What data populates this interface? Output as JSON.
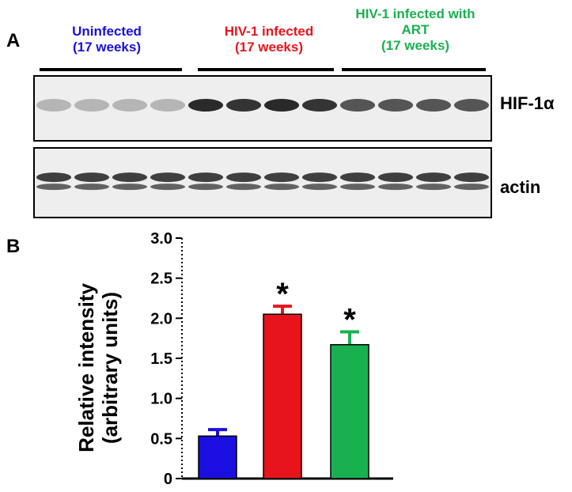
{
  "panel_a": {
    "label": "A",
    "groups": [
      {
        "lines": [
          "Uninfected",
          "(17 weeks)"
        ],
        "color": "#1a0fe0"
      },
      {
        "lines": [
          "HIV-1 infected",
          "(17 weeks)"
        ],
        "color": "#e8141c"
      },
      {
        "lines": [
          "HIV-1 infected with",
          "ART",
          "(17 weeks)"
        ],
        "color": "#19b14f"
      }
    ],
    "blots": [
      {
        "label": "HIF-1α",
        "band_intensity": [
          0.25,
          0.25,
          0.25,
          0.25,
          0.9,
          0.85,
          0.9,
          0.85,
          0.7,
          0.7,
          0.7,
          0.7
        ]
      },
      {
        "label": "actin",
        "band_intensity": [
          0.8,
          0.8,
          0.8,
          0.8,
          0.8,
          0.8,
          0.8,
          0.8,
          0.8,
          0.8,
          0.8,
          0.8
        ]
      }
    ]
  },
  "panel_b": {
    "label": "B"
  },
  "chart_data": {
    "type": "bar",
    "categories": [
      "Uninfected",
      "HIV-1 infected",
      "HIV-1 infected with ART"
    ],
    "values": [
      0.53,
      2.05,
      1.67
    ],
    "errors": [
      0.08,
      0.1,
      0.16
    ],
    "colors": [
      "#1a0fe0",
      "#e8141c",
      "#19b14f"
    ],
    "significance": [
      "",
      "*",
      "*"
    ],
    "ylabel_lines": [
      "Relative intensity",
      "(arbitrary units)"
    ],
    "ylim": [
      0,
      3.0
    ],
    "yticks": [
      "0",
      "0.5",
      "1.0",
      "1.5",
      "2.0",
      "2.5",
      "3.0"
    ],
    "grid": false
  }
}
